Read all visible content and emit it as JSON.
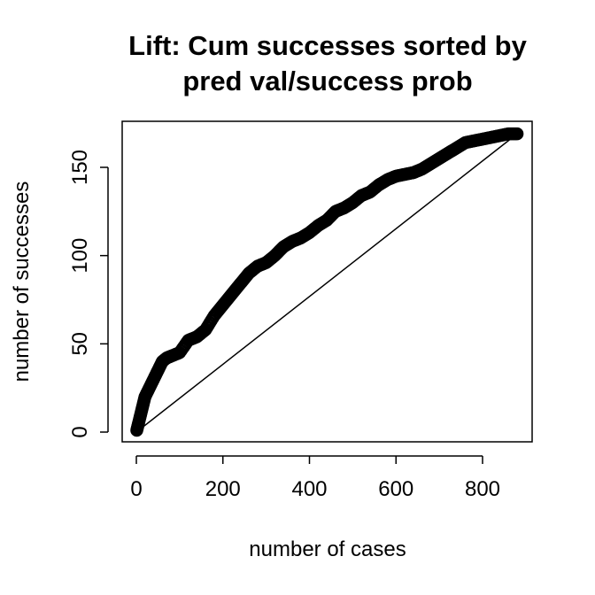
{
  "chart_data": {
    "type": "scatter",
    "title_lines": [
      "Lift: Cum successes sorted by",
      "pred val/success prob"
    ],
    "xlabel": "number of cases",
    "ylabel": "number of successes",
    "xlim": [
      0,
      900
    ],
    "ylim": [
      0,
      170
    ],
    "x_ticks": [
      0,
      200,
      400,
      600,
      800
    ],
    "y_ticks": [
      0,
      50,
      100,
      150
    ],
    "x_tick_labels": [
      "0",
      "200",
      "400",
      "600",
      "800"
    ],
    "y_tick_labels": [
      "0",
      "50",
      "100",
      "150"
    ],
    "grid": false,
    "legend": "none",
    "series": [
      {
        "kind": "points",
        "marker": "open-circle",
        "color": "#000000",
        "x": [
          1,
          5,
          10,
          15,
          20,
          30,
          40,
          50,
          60,
          70,
          80,
          100,
          120,
          140,
          160,
          180,
          200,
          220,
          240,
          260,
          280,
          300,
          320,
          340,
          360,
          380,
          400,
          420,
          440,
          460,
          480,
          500,
          520,
          540,
          560,
          580,
          600,
          620,
          640,
          660,
          680,
          700,
          720,
          740,
          760,
          780,
          800,
          820,
          840,
          860,
          880
        ],
        "y": [
          1,
          5,
          10,
          15,
          20,
          25,
          30,
          35,
          40,
          42,
          43,
          45,
          52,
          54,
          58,
          66,
          72,
          78,
          84,
          90,
          94,
          96,
          100,
          105,
          108,
          110,
          113,
          117,
          120,
          125,
          127,
          130,
          134,
          136,
          140,
          143,
          145,
          146,
          147,
          149,
          152,
          155,
          158,
          161,
          164,
          165,
          166,
          167,
          168,
          169,
          169
        ]
      },
      {
        "kind": "line",
        "color": "#000000",
        "x": [
          0,
          880
        ],
        "y": [
          0,
          169
        ]
      }
    ]
  }
}
